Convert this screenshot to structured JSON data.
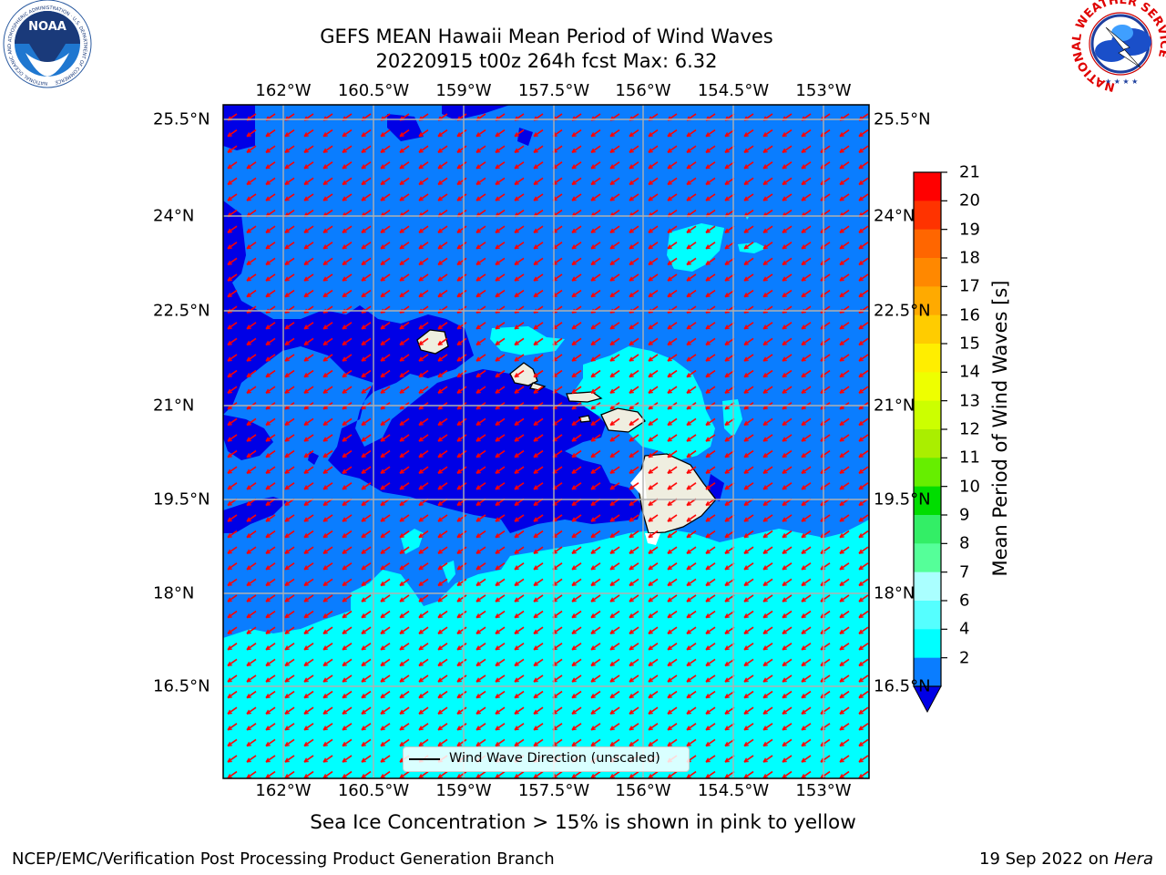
{
  "title": {
    "line1": "GEFS MEAN Hawaii Mean Period of Wind Waves",
    "line2": "20220915 t00z 264h fcst   Max: 6.32"
  },
  "map": {
    "lon_labels": [
      "162°W",
      "160.5°W",
      "159°W",
      "157.5°W",
      "156°W",
      "154.5°W",
      "153°W"
    ],
    "lat_labels": [
      "25.5°N",
      "24°N",
      "22.5°N",
      "21°N",
      "19.5°N",
      "18°N",
      "16.5°N"
    ],
    "legend_label": "Wind Wave Direction (unscaled)",
    "wave_direction": "from northeast (arrows point southwest)",
    "colors": {
      "level_2_4": "#0a7dff",
      "below_2": "#0000e6",
      "level_4_6": "#00ffff",
      "land": "#efeee0",
      "arrows": "#ff0000",
      "grid": "#b0b0b0"
    }
  },
  "colorbar": {
    "label": "Mean Period of Wind Waves [s]",
    "ticks": [
      "21",
      "20",
      "19",
      "18",
      "17",
      "16",
      "15",
      "14",
      "13",
      "12",
      "11",
      "10",
      "9",
      "8",
      "7",
      "6",
      "4",
      "2"
    ],
    "bands_top_to_bottom": [
      "#ff0000",
      "#ff3300",
      "#ff6600",
      "#ff8800",
      "#ffaa00",
      "#ffcc00",
      "#ffee00",
      "#eeff00",
      "#ccff00",
      "#aaee00",
      "#66ee00",
      "#00dd00",
      "#33ee66",
      "#55ff99",
      "#aaffff",
      "#55ffff",
      "#00ffff",
      "#0a7dff"
    ],
    "extend_color": "#0000e6"
  },
  "note": "Sea Ice Concentration > 15% is shown in pink to yellow",
  "footer": {
    "left": "NCEP/EMC/Verification Post Processing Product Generation Branch",
    "right_date": "19 Sep 2022 on ",
    "right_host": "Hera"
  },
  "logos": {
    "noaa_text": "NOAA",
    "noaa_ring": "NATIONAL OCEANIC AND ATMOSPHERIC ADMINISTRATION · U.S. DEPARTMENT OF COMMERCE",
    "nws_ring": "NATIONAL WEATHER SERVICE"
  }
}
